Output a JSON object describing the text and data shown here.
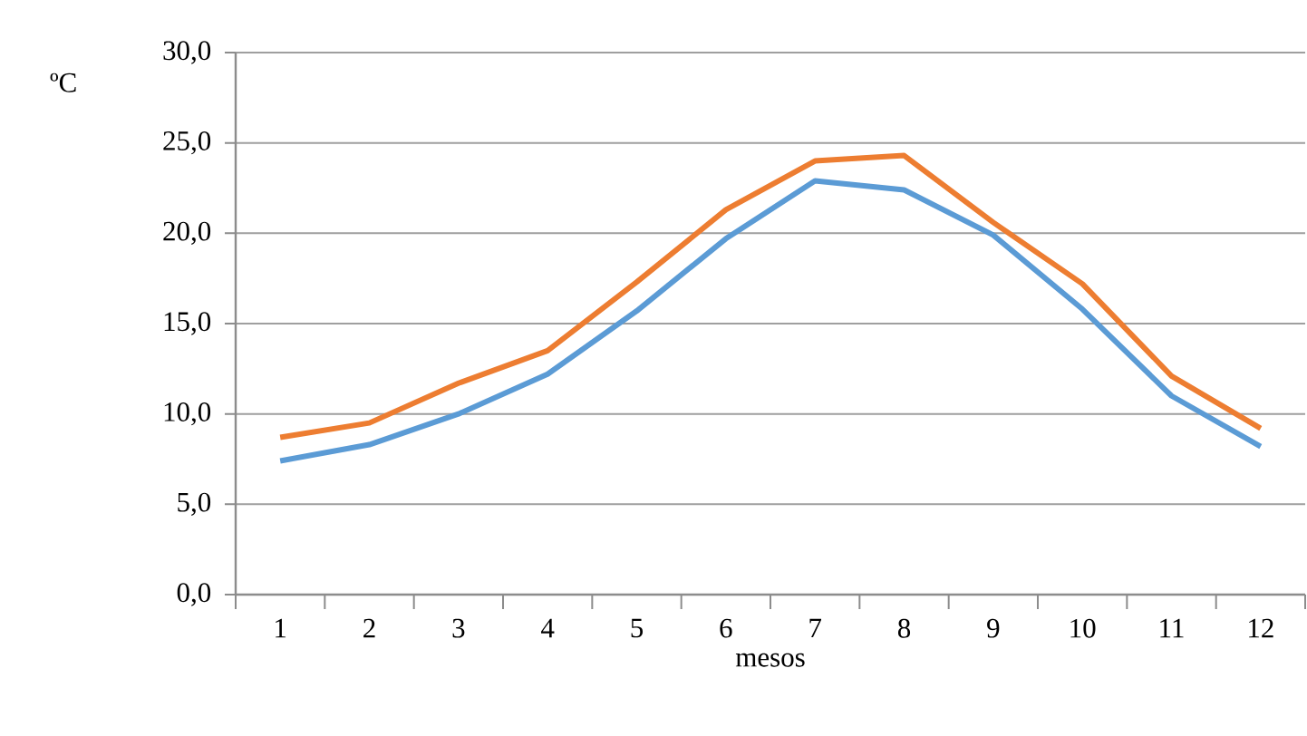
{
  "chart_data": {
    "type": "line",
    "xlabel": "mesos",
    "ylabel": "ºC",
    "categories": [
      "1",
      "2",
      "3",
      "4",
      "5",
      "6",
      "7",
      "8",
      "9",
      "10",
      "11",
      "12"
    ],
    "series": [
      {
        "color": "#5b9bd5",
        "values": [
          7.4,
          8.3,
          10.0,
          12.2,
          15.7,
          19.7,
          22.9,
          22.4,
          19.9,
          15.8,
          11.0,
          8.2
        ]
      },
      {
        "color": "#ed7d31",
        "values": [
          8.7,
          9.5,
          11.7,
          13.5,
          17.3,
          21.3,
          24.0,
          24.3,
          20.6,
          17.2,
          12.1,
          9.2
        ]
      }
    ],
    "ylim": [
      0,
      30
    ],
    "yticks": [
      {
        "value": 0,
        "label": "0,0"
      },
      {
        "value": 5,
        "label": "5,0"
      },
      {
        "value": 10,
        "label": "10,0"
      },
      {
        "value": 15,
        "label": "15,0"
      },
      {
        "value": 20,
        "label": "20,0"
      },
      {
        "value": 25,
        "label": "25,0"
      },
      {
        "value": 30,
        "label": "30,0"
      }
    ],
    "grid": "y"
  }
}
